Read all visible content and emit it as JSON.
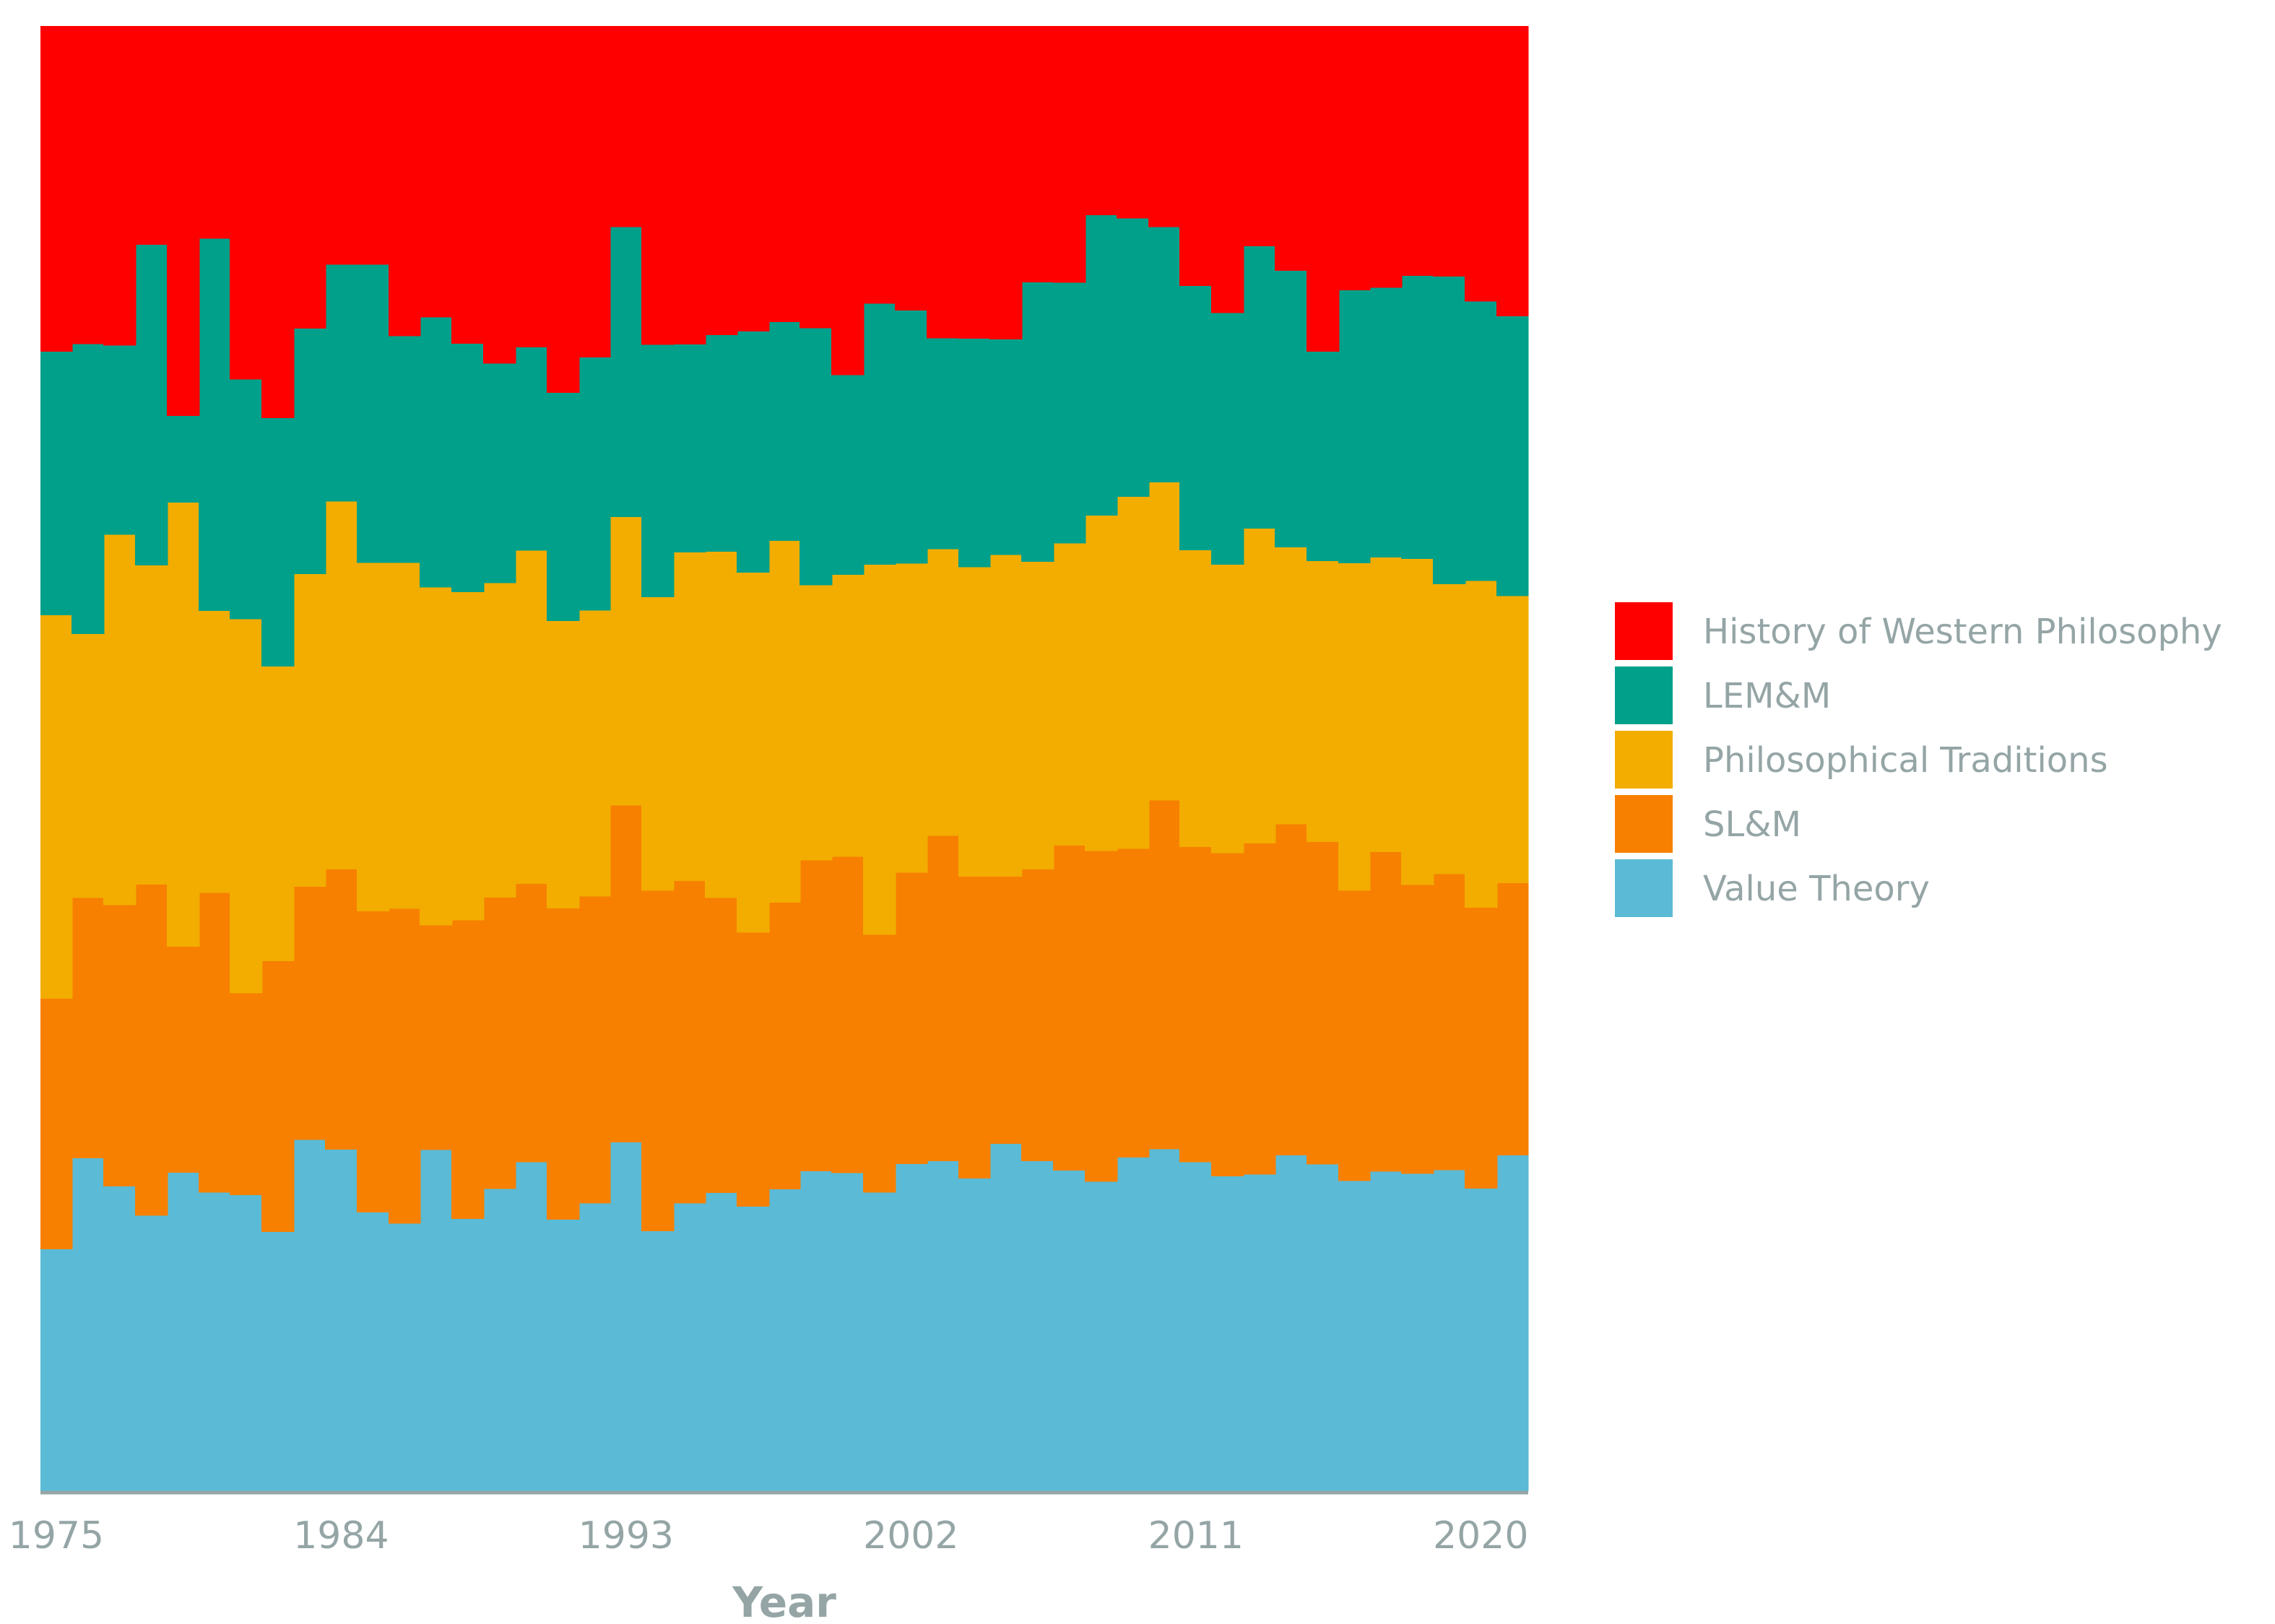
{
  "chart_data": {
    "type": "area",
    "stacked": "normalized",
    "step": true,
    "title": "",
    "xlabel": "Year",
    "ylabel": "",
    "x": [
      1975,
      1976,
      1977,
      1978,
      1979,
      1980,
      1981,
      1982,
      1983,
      1984,
      1985,
      1986,
      1987,
      1988,
      1989,
      1990,
      1991,
      1992,
      1993,
      1994,
      1995,
      1996,
      1997,
      1998,
      1999,
      2000,
      2001,
      2002,
      2003,
      2004,
      2005,
      2006,
      2007,
      2008,
      2009,
      2010,
      2011,
      2012,
      2013,
      2014,
      2015,
      2016,
      2017,
      2018,
      2019,
      2020,
      2021
    ],
    "xlim": [
      1974.5,
      2021.5
    ],
    "ylim": [
      0,
      1
    ],
    "xticks": [
      1975,
      1984,
      1993,
      2002,
      2011,
      2020
    ],
    "legend_position": "right",
    "grid": false,
    "series": [
      {
        "name": "Value Theory",
        "color": "#5bbad5",
        "values": [
          0.165,
          0.227,
          0.208,
          0.188,
          0.187,
          0.201,
          0.196,
          0.176,
          0.23,
          0.219,
          0.187,
          0.17,
          0.231,
          0.173,
          0.198,
          0.21,
          0.182,
          0.192,
          0.238,
          0.176,
          0.188,
          0.198,
          0.191,
          0.2,
          0.215,
          0.215,
          0.2,
          0.222,
          0.222,
          0.213,
          0.235,
          0.223,
          0.21,
          0.211,
          0.231,
          0.233,
          0.219,
          0.215,
          0.216,
          0.228,
          0.223,
          0.21,
          0.22,
          0.216,
          0.218,
          0.21,
          0.228
        ]
      },
      {
        "name": "SL&M",
        "color": "#f78000",
        "values": [
          0.171,
          0.178,
          0.192,
          0.226,
          0.133,
          0.202,
          0.134,
          0.184,
          0.166,
          0.18,
          0.202,
          0.2,
          0.152,
          0.19,
          0.191,
          0.178,
          0.209,
          0.205,
          0.23,
          0.231,
          0.211,
          0.196,
          0.184,
          0.19,
          0.209,
          0.214,
          0.173,
          0.198,
          0.219,
          0.206,
          0.181,
          0.197,
          0.213,
          0.226,
          0.214,
          0.238,
          0.21,
          0.221,
          0.226,
          0.225,
          0.22,
          0.197,
          0.22,
          0.197,
          0.201,
          0.195,
          0.185
        ]
      },
      {
        "name": "Philosophical Traditions",
        "color": "#f2ad00",
        "values": [
          0.262,
          0.18,
          0.253,
          0.218,
          0.261,
          0.19,
          0.248,
          0.2,
          0.205,
          0.236,
          0.234,
          0.22,
          0.229,
          0.209,
          0.206,
          0.213,
          0.193,
          0.191,
          0.197,
          0.199,
          0.215,
          0.23,
          0.242,
          0.24,
          0.185,
          0.191,
          0.248,
          0.21,
          0.193,
          0.211,
          0.218,
          0.208,
          0.198,
          0.229,
          0.244,
          0.217,
          0.198,
          0.197,
          0.215,
          0.188,
          0.192,
          0.222,
          0.203,
          0.222,
          0.197,
          0.227,
          0.195
        ]
      },
      {
        "name": "LEM&M",
        "color": "#00a08a",
        "values": [
          0.18,
          0.198,
          0.129,
          0.219,
          0.051,
          0.251,
          0.159,
          0.169,
          0.161,
          0.152,
          0.2,
          0.144,
          0.183,
          0.158,
          0.144,
          0.13,
          0.153,
          0.169,
          0.198,
          0.171,
          0.136,
          0.144,
          0.162,
          0.145,
          0.173,
          0.135,
          0.175,
          0.172,
          0.142,
          0.156,
          0.146,
          0.189,
          0.171,
          0.205,
          0.193,
          0.174,
          0.176,
          0.172,
          0.193,
          0.188,
          0.143,
          0.185,
          0.186,
          0.193,
          0.209,
          0.194,
          0.19
        ]
      },
      {
        "name": "History of Western Philosophy",
        "color": "#ff0000",
        "values": [
          0.222,
          0.217,
          0.218,
          0.149,
          0.229,
          0.143,
          0.234,
          0.266,
          0.198,
          0.153,
          0.16,
          0.197,
          0.197,
          0.202,
          0.221,
          0.205,
          0.246,
          0.221,
          0.137,
          0.216,
          0.208,
          0.205,
          0.205,
          0.196,
          0.203,
          0.236,
          0.186,
          0.193,
          0.21,
          0.213,
          0.212,
          0.173,
          0.168,
          0.129,
          0.133,
          0.137,
          0.173,
          0.196,
          0.15,
          0.166,
          0.222,
          0.179,
          0.18,
          0.17,
          0.17,
          0.191,
          0.197
        ]
      }
    ]
  }
}
